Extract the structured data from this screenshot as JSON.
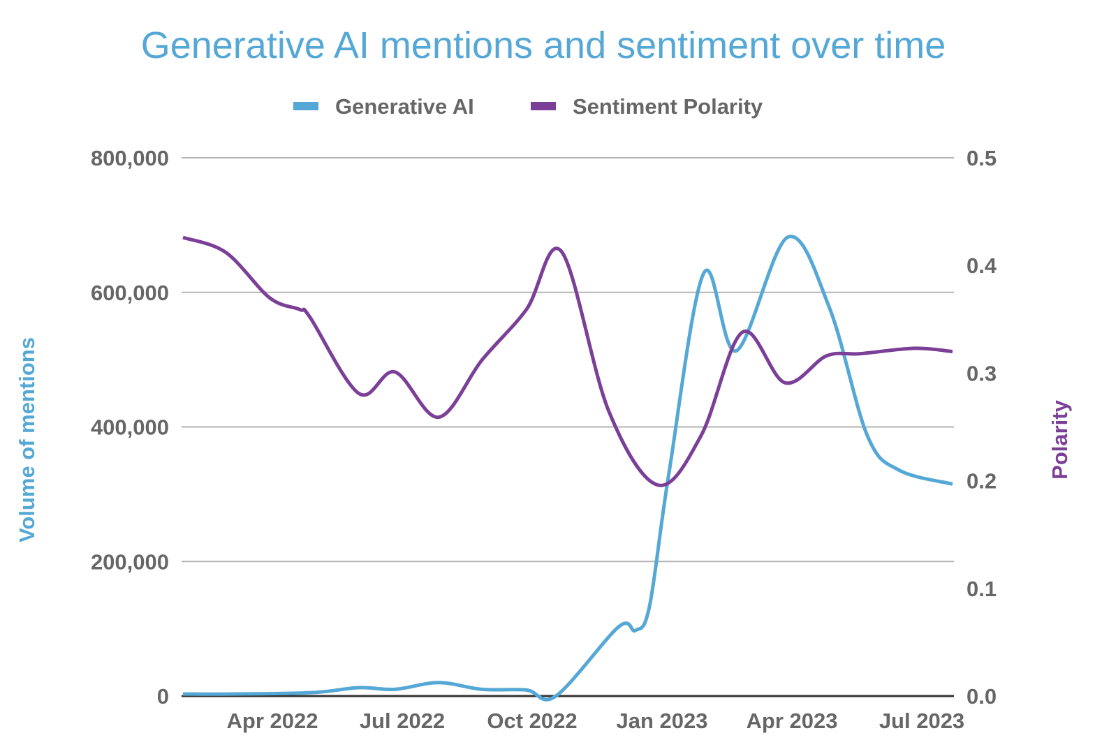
{
  "chart_data": {
    "type": "line",
    "title": "Generative AI mentions and sentiment over time",
    "legend_position": "top",
    "grid": true,
    "x_ticks": [
      {
        "date": "2022-04-01",
        "label": "Apr 2022"
      },
      {
        "date": "2022-07-01",
        "label": "Jul 2022"
      },
      {
        "date": "2022-10-01",
        "label": "Oct 2022"
      },
      {
        "date": "2023-01-01",
        "label": "Jan 2023"
      },
      {
        "date": "2023-04-01",
        "label": "Apr 2023"
      },
      {
        "date": "2023-07-01",
        "label": "Jul 2023"
      }
    ],
    "xlim": [
      "2022-01-29",
      "2023-07-24"
    ],
    "y_left": {
      "label": "Volume of mentions",
      "range": [
        0,
        800000
      ],
      "ticks": [
        0,
        200000,
        400000,
        600000,
        800000
      ],
      "tick_labels": [
        "0",
        "200,000",
        "400,000",
        "600,000",
        "800,000"
      ]
    },
    "y_right": {
      "label": "Polarity",
      "range": [
        0,
        0.5
      ],
      "ticks": [
        0,
        0.1,
        0.2,
        0.3,
        0.4,
        0.5
      ],
      "tick_labels": [
        "0.0",
        "0.1",
        "0.2",
        "0.3",
        "0.4",
        "0.5"
      ]
    },
    "series": [
      {
        "name": "Generative AI",
        "axis": "left",
        "color": "#55a8d6",
        "points": [
          [
            "2022-01-30",
            3000
          ],
          [
            "2022-03-02",
            3000
          ],
          [
            "2022-04-28",
            5000
          ],
          [
            "2022-06-01",
            12500
          ],
          [
            "2022-06-26",
            10000
          ],
          [
            "2022-07-27",
            20000
          ],
          [
            "2022-08-27",
            10000
          ],
          [
            "2022-09-27",
            9000
          ],
          [
            "2022-10-18",
            0
          ],
          [
            "2022-12-01",
            103000
          ],
          [
            "2022-12-13",
            97500
          ],
          [
            "2022-12-23",
            133000
          ],
          [
            "2023-01-06",
            332000
          ],
          [
            "2023-01-31",
            629000
          ],
          [
            "2023-02-21",
            513000
          ],
          [
            "2023-03-29",
            682000
          ],
          [
            "2023-04-27",
            577000
          ],
          [
            "2023-05-24",
            387000
          ],
          [
            "2023-06-15",
            336000
          ],
          [
            "2023-07-23",
            315000
          ]
        ]
      },
      {
        "name": "Sentiment Polarity",
        "axis": "right",
        "color": "#7b3f98",
        "points": [
          [
            "2022-01-30",
            0.426
          ],
          [
            "2022-02-27",
            0.412
          ],
          [
            "2022-03-30",
            0.37
          ],
          [
            "2022-04-20",
            0.359
          ],
          [
            "2022-04-27",
            0.352
          ],
          [
            "2022-06-01",
            0.281
          ],
          [
            "2022-06-26",
            0.301
          ],
          [
            "2022-07-27",
            0.259
          ],
          [
            "2022-08-27",
            0.312
          ],
          [
            "2022-09-27",
            0.359
          ],
          [
            "2022-10-22",
            0.413
          ],
          [
            "2022-11-24",
            0.265
          ],
          [
            "2022-12-29",
            0.196
          ],
          [
            "2023-01-29",
            0.242
          ],
          [
            "2023-02-25",
            0.338
          ],
          [
            "2023-03-27",
            0.291
          ],
          [
            "2023-04-25",
            0.316
          ],
          [
            "2023-05-19",
            0.318
          ],
          [
            "2023-06-26",
            0.323
          ],
          [
            "2023-07-23",
            0.32
          ]
        ]
      }
    ]
  }
}
